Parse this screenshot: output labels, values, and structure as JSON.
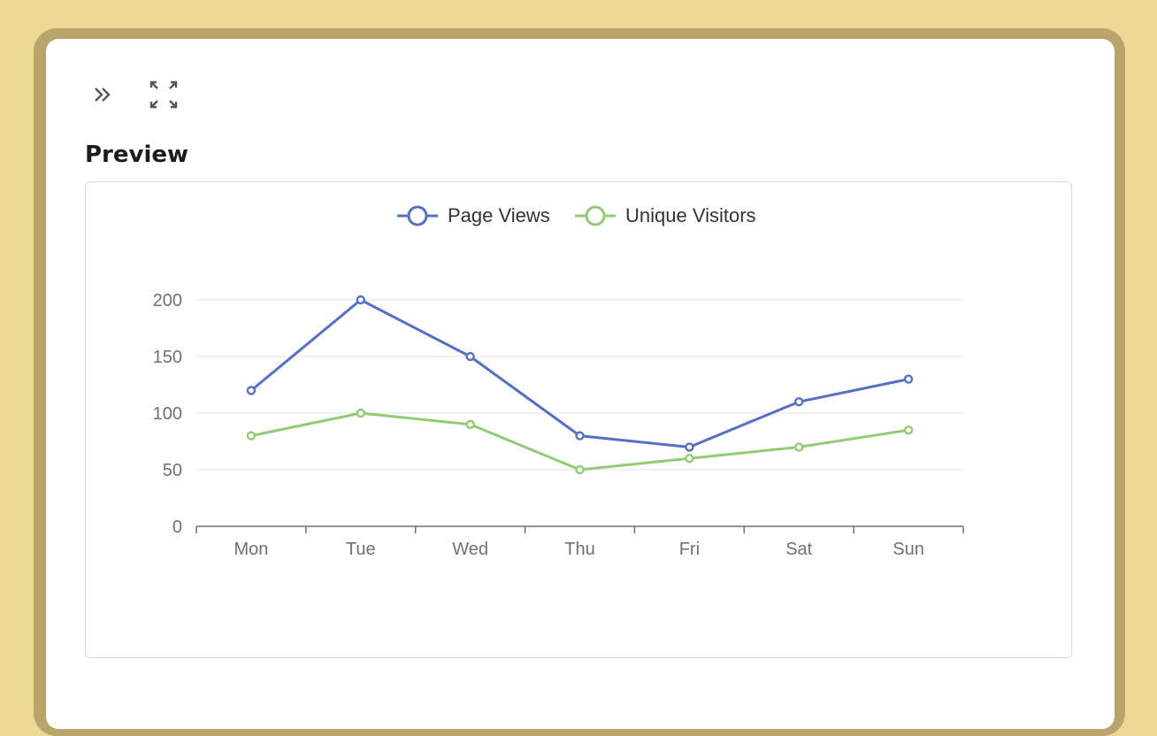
{
  "toolbar": {
    "collapse_icon": "double-chevron-right-icon",
    "fullscreen_icon": "fullscreen-icon"
  },
  "preview": {
    "title": "Preview"
  },
  "colors": {
    "page_views": "#5470c6",
    "unique_visitors": "#91cc75"
  },
  "chart_data": {
    "type": "line",
    "categories": [
      "Mon",
      "Tue",
      "Wed",
      "Thu",
      "Fri",
      "Sat",
      "Sun"
    ],
    "series": [
      {
        "name": "Page Views",
        "values": [
          120,
          200,
          150,
          80,
          70,
          110,
          130
        ]
      },
      {
        "name": "Unique Visitors",
        "values": [
          80,
          100,
          90,
          50,
          60,
          70,
          85
        ]
      }
    ],
    "ylim": [
      0,
      200
    ],
    "yticks": [
      0,
      50,
      100,
      150,
      200
    ],
    "grid": true,
    "legend": "top-center"
  }
}
